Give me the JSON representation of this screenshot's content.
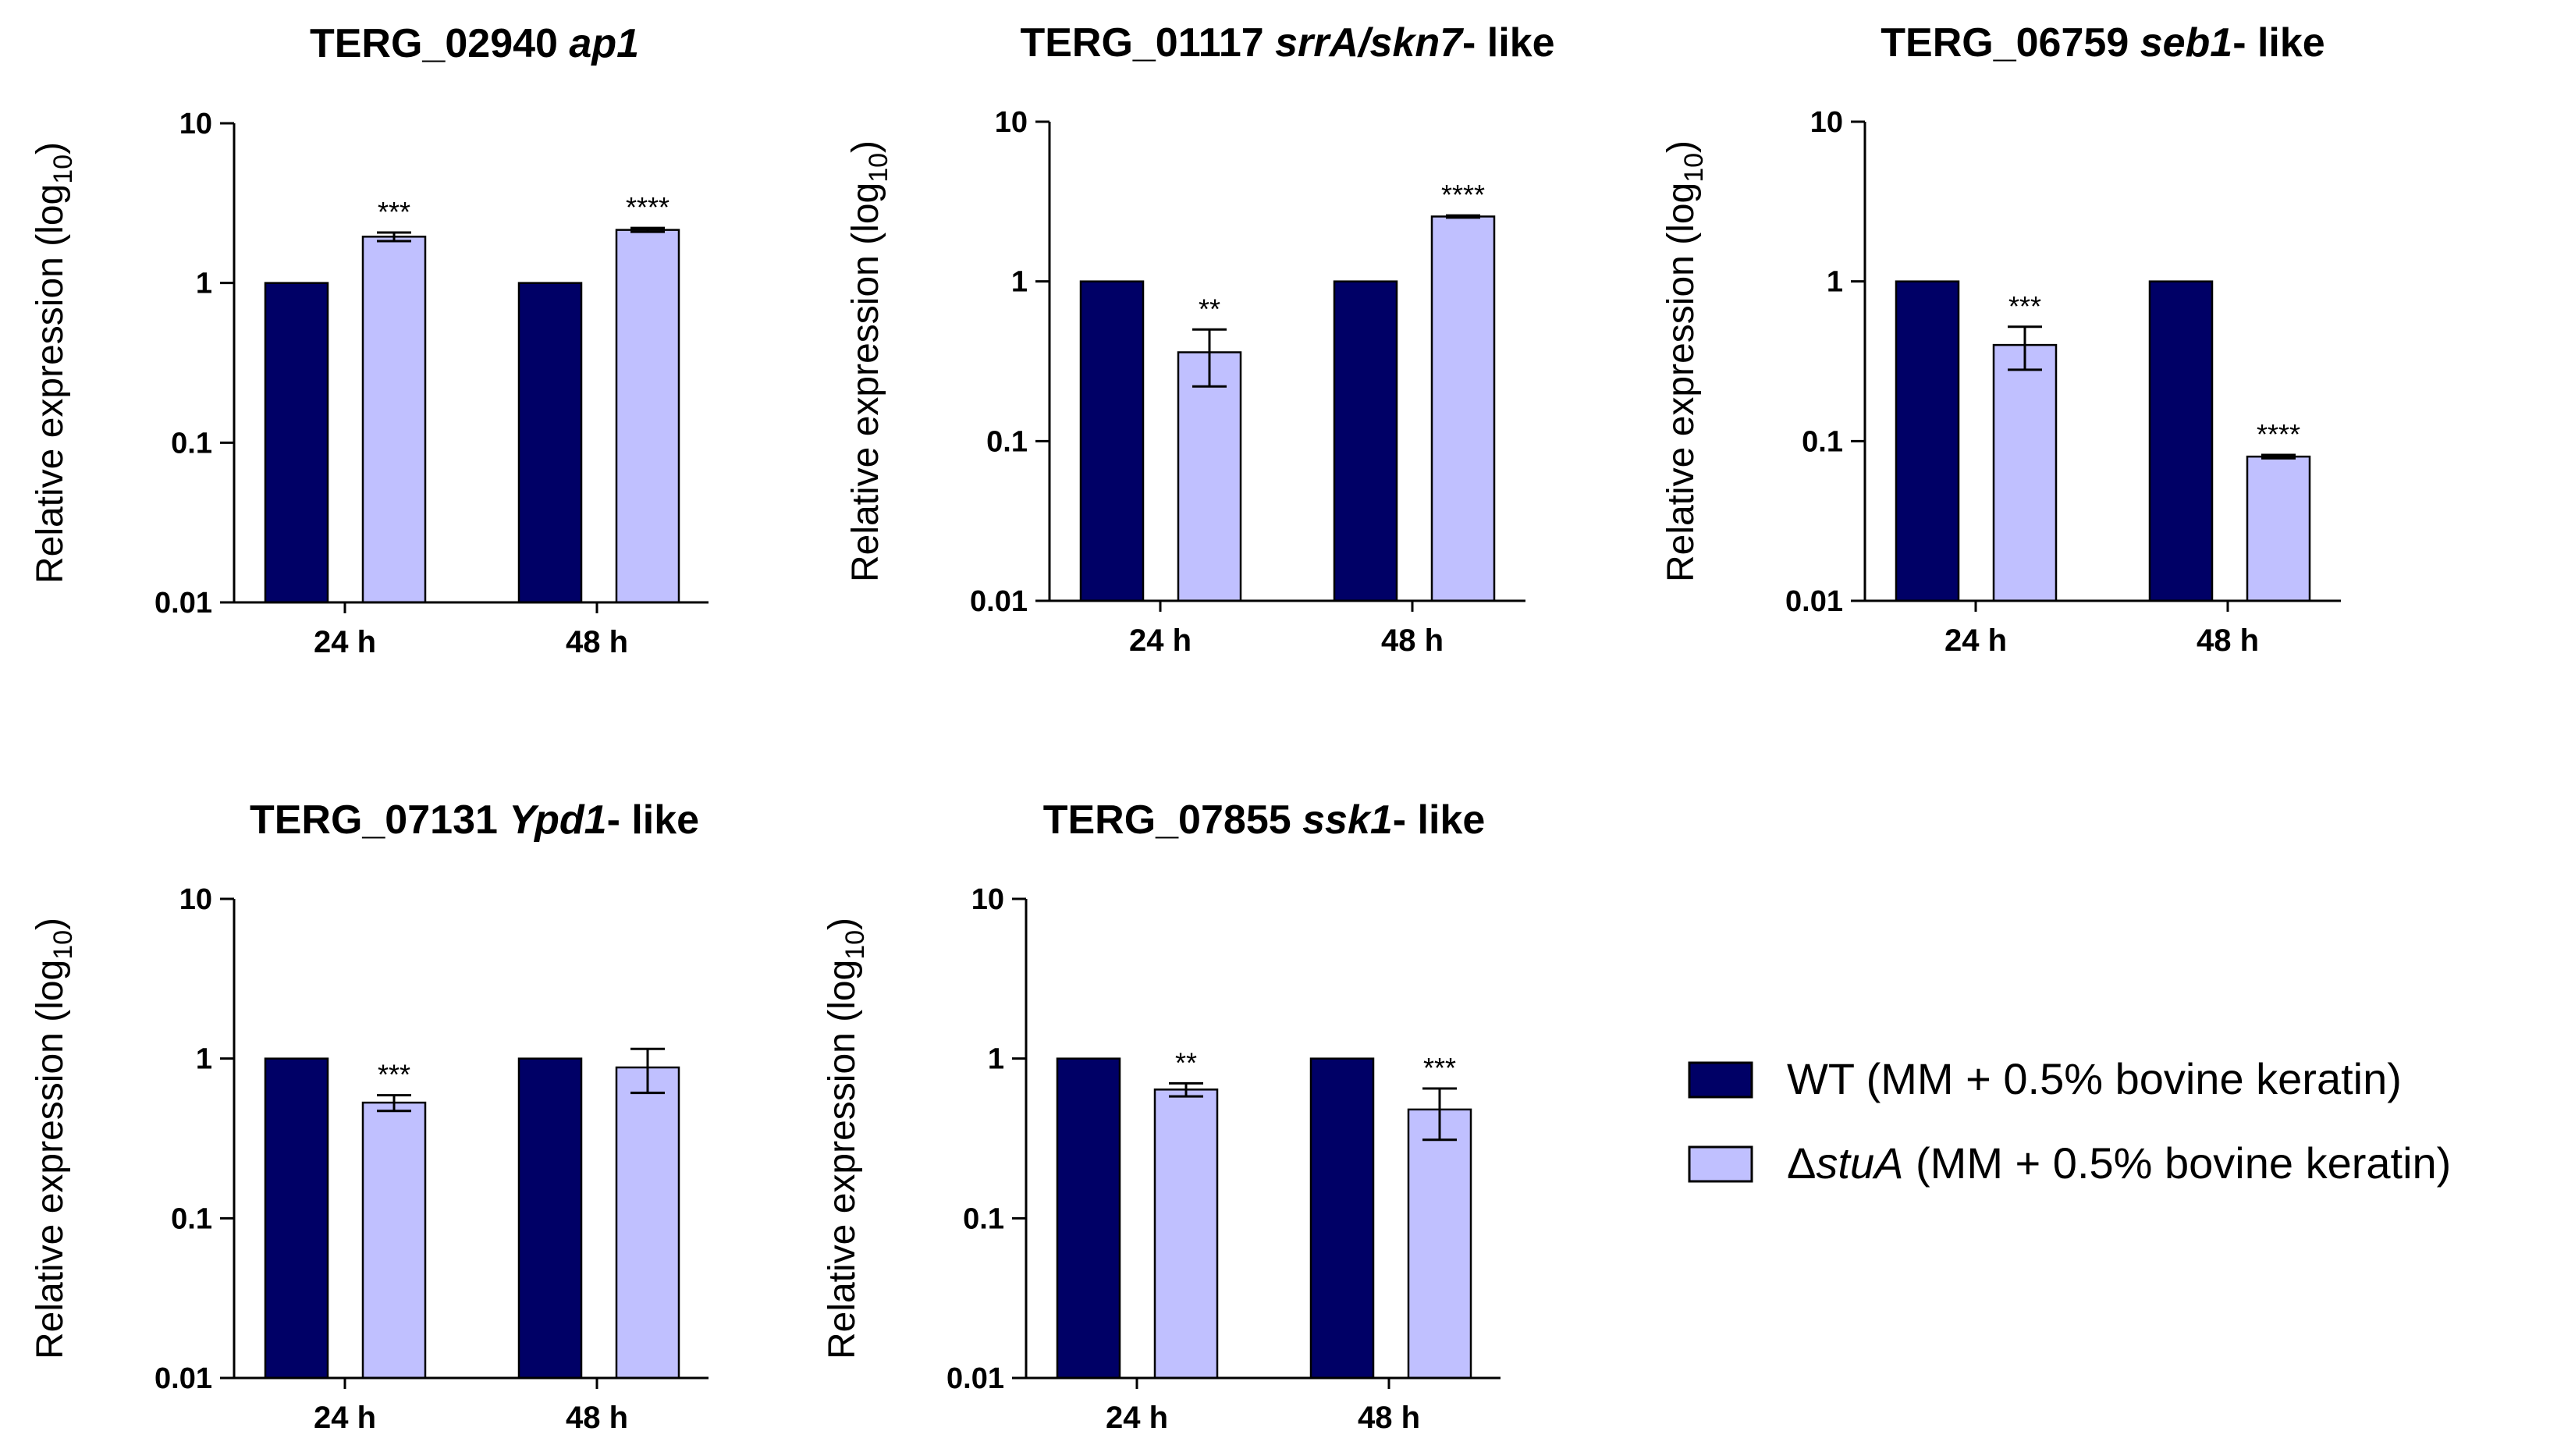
{
  "colors": {
    "wt": "#000066",
    "mutant": "#c0c0ff",
    "stroke": "#000000"
  },
  "legend": {
    "items": [
      {
        "series": "wt",
        "label": "WT (MM + 0.5% bovine keratin)"
      },
      {
        "series": "mutant",
        "prefix": "Δ",
        "italic": "stuA",
        "suffix": " (MM + 0.5% bovine keratin)"
      }
    ]
  },
  "chart_data": [
    {
      "type": "bar",
      "scale": "log10",
      "title_plain": "TERG_02940 ",
      "title_italic": "ap1",
      "title_rest": "",
      "ylabel": "Relative expression (log",
      "ylabel_sub": "10",
      "ylabel_close": ")",
      "ylim": [
        0.01,
        10
      ],
      "yticks": [
        "0.01",
        "0.1",
        "1",
        "10"
      ],
      "categories": [
        "24 h",
        "48 h"
      ],
      "series": [
        {
          "name": "WT",
          "key": "wt",
          "values": [
            1,
            1
          ],
          "err": [
            0,
            0
          ]
        },
        {
          "name": "ΔstuA",
          "key": "mutant",
          "values": [
            1.95,
            2.15
          ],
          "err": [
            0.12,
            0.06
          ]
        }
      ],
      "significance": [
        "***",
        "****"
      ]
    },
    {
      "type": "bar",
      "scale": "log10",
      "title_plain": "TERG_01117 ",
      "title_italic": "srrA/skn7",
      "title_rest": "- like",
      "ylabel": "Relative expression (log",
      "ylabel_sub": "10",
      "ylabel_close": ")",
      "ylim": [
        0.01,
        10
      ],
      "yticks": [
        "0.01",
        "0.1",
        "1",
        "10"
      ],
      "categories": [
        "24 h",
        "48 h"
      ],
      "series": [
        {
          "name": "WT",
          "key": "wt",
          "values": [
            1,
            1
          ],
          "err": [
            0,
            0
          ]
        },
        {
          "name": "ΔstuA",
          "key": "mutant",
          "values": [
            0.36,
            2.55
          ],
          "err": [
            0.14,
            0.04
          ]
        }
      ],
      "significance": [
        "**",
        "****"
      ]
    },
    {
      "type": "bar",
      "scale": "log10",
      "title_plain": "TERG_06759 ",
      "title_italic": "seb1",
      "title_rest": "- like",
      "ylabel": "Relative expression (log",
      "ylabel_sub": "10",
      "ylabel_close": ")",
      "ylim": [
        0.01,
        10
      ],
      "yticks": [
        "0.01",
        "0.1",
        "1",
        "10"
      ],
      "categories": [
        "24 h",
        "48 h"
      ],
      "series": [
        {
          "name": "WT",
          "key": "wt",
          "values": [
            1,
            1
          ],
          "err": [
            0,
            0
          ]
        },
        {
          "name": "ΔstuA",
          "key": "mutant",
          "values": [
            0.4,
            0.08
          ],
          "err": [
            0.12,
            0.002
          ]
        }
      ],
      "significance": [
        "***",
        "****"
      ]
    },
    {
      "type": "bar",
      "scale": "log10",
      "title_plain": "TERG_07131 ",
      "title_italic": "Ypd1",
      "title_rest": "- like",
      "ylabel": "Relative expression (log",
      "ylabel_sub": "10",
      "ylabel_close": ")",
      "ylim": [
        0.01,
        10
      ],
      "yticks": [
        "0.01",
        "0.1",
        "1",
        "10"
      ],
      "categories": [
        "24 h",
        "48 h"
      ],
      "series": [
        {
          "name": "WT",
          "key": "wt",
          "values": [
            1,
            1
          ],
          "err": [
            0,
            0
          ]
        },
        {
          "name": "ΔstuA",
          "key": "mutant",
          "values": [
            0.53,
            0.88
          ],
          "err": [
            0.06,
            0.27
          ]
        }
      ],
      "significance": [
        "***",
        ""
      ]
    },
    {
      "type": "bar",
      "scale": "log10",
      "title_plain": "TERG_07855 ",
      "title_italic": "ssk1",
      "title_rest": "- like",
      "ylabel": "Relative expression (log",
      "ylabel_sub": "10",
      "ylabel_close": ")",
      "ylim": [
        0.01,
        10
      ],
      "yticks": [
        "0.01",
        "0.1",
        "1",
        "10"
      ],
      "categories": [
        "24 h",
        "48 h"
      ],
      "series": [
        {
          "name": "WT",
          "key": "wt",
          "values": [
            1,
            1
          ],
          "err": [
            0,
            0
          ]
        },
        {
          "name": "ΔstuA",
          "key": "mutant",
          "values": [
            0.64,
            0.48
          ],
          "err": [
            0.06,
            0.17
          ]
        }
      ],
      "significance": [
        "**",
        "***"
      ]
    }
  ]
}
